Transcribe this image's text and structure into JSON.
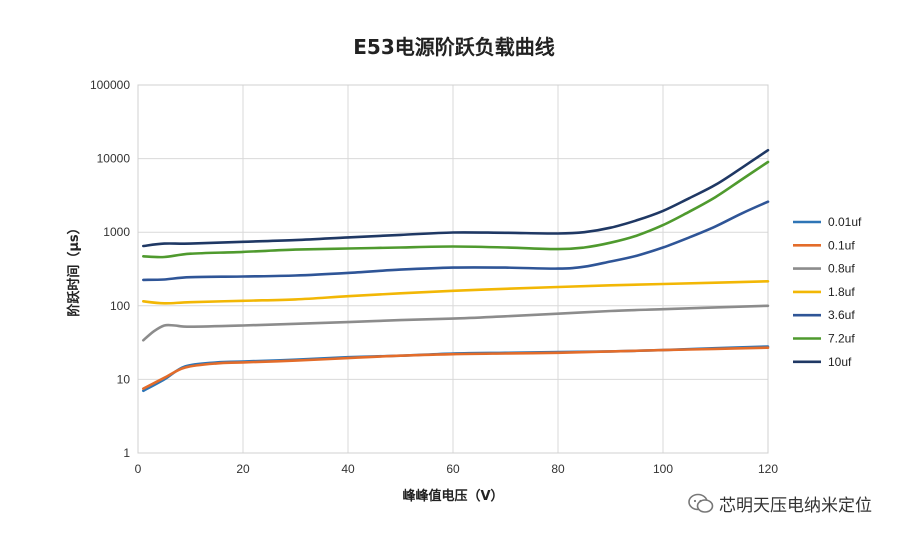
{
  "chart_data": {
    "type": "line",
    "title": "E53电源阶跃负载曲线",
    "xlabel": "峰峰值电压（V）",
    "ylabel": "阶跃时间（μs）",
    "x_ticks": [
      "0",
      "20",
      "40",
      "60",
      "80",
      "100",
      "120"
    ],
    "y_ticks": [
      "1",
      "10",
      "100",
      "1000",
      "10000",
      "100000"
    ],
    "xlim": [
      0,
      120
    ],
    "ylim": [
      1,
      100000
    ],
    "y_scale": "log",
    "grid": true,
    "legend_position": "right",
    "series": [
      {
        "name": "0.01uf",
        "color": "#2e75b6",
        "points": [
          [
            1,
            7
          ],
          [
            5,
            10
          ],
          [
            9,
            15
          ],
          [
            15,
            17
          ],
          [
            20,
            17.5
          ],
          [
            30,
            18.5
          ],
          [
            40,
            20
          ],
          [
            50,
            21
          ],
          [
            60,
            22.5
          ],
          [
            70,
            23
          ],
          [
            80,
            23.5
          ],
          [
            90,
            24
          ],
          [
            100,
            25
          ],
          [
            110,
            26.5
          ],
          [
            120,
            28
          ]
        ]
      },
      {
        "name": "0.1uf",
        "color": "#e36c2a",
        "points": [
          [
            1,
            7.5
          ],
          [
            5,
            10.5
          ],
          [
            9,
            14.5
          ],
          [
            15,
            16.5
          ],
          [
            20,
            17
          ],
          [
            30,
            18
          ],
          [
            40,
            19.5
          ],
          [
            50,
            21
          ],
          [
            60,
            22
          ],
          [
            70,
            22.5
          ],
          [
            80,
            23
          ],
          [
            90,
            24
          ],
          [
            100,
            25
          ],
          [
            110,
            26
          ],
          [
            120,
            27
          ]
        ]
      },
      {
        "name": "0.8uf",
        "color": "#8c8c8c",
        "points": [
          [
            1,
            34
          ],
          [
            3,
            45
          ],
          [
            5,
            54
          ],
          [
            7,
            54
          ],
          [
            10,
            52
          ],
          [
            20,
            54
          ],
          [
            30,
            57
          ],
          [
            40,
            60
          ],
          [
            50,
            64
          ],
          [
            60,
            67
          ],
          [
            70,
            72
          ],
          [
            80,
            78
          ],
          [
            90,
            85
          ],
          [
            100,
            90
          ],
          [
            110,
            95
          ],
          [
            120,
            100
          ]
        ]
      },
      {
        "name": "1.8uf",
        "color": "#f2b705",
        "points": [
          [
            1,
            115
          ],
          [
            5,
            108
          ],
          [
            10,
            112
          ],
          [
            20,
            117
          ],
          [
            30,
            122
          ],
          [
            40,
            135
          ],
          [
            50,
            148
          ],
          [
            60,
            160
          ],
          [
            70,
            170
          ],
          [
            80,
            180
          ],
          [
            90,
            190
          ],
          [
            100,
            198
          ],
          [
            110,
            206
          ],
          [
            120,
            215
          ]
        ]
      },
      {
        "name": "3.6uf",
        "color": "#2f5597",
        "points": [
          [
            1,
            225
          ],
          [
            5,
            228
          ],
          [
            10,
            245
          ],
          [
            20,
            250
          ],
          [
            30,
            258
          ],
          [
            40,
            280
          ],
          [
            50,
            310
          ],
          [
            60,
            330
          ],
          [
            70,
            330
          ],
          [
            80,
            320
          ],
          [
            85,
            340
          ],
          [
            90,
            400
          ],
          [
            95,
            480
          ],
          [
            100,
            620
          ],
          [
            105,
            850
          ],
          [
            110,
            1200
          ],
          [
            115,
            1800
          ],
          [
            120,
            2600
          ]
        ]
      },
      {
        "name": "7.2uf",
        "color": "#4f9a2e",
        "points": [
          [
            1,
            470
          ],
          [
            5,
            460
          ],
          [
            10,
            510
          ],
          [
            20,
            540
          ],
          [
            30,
            580
          ],
          [
            40,
            600
          ],
          [
            50,
            620
          ],
          [
            60,
            640
          ],
          [
            70,
            620
          ],
          [
            80,
            590
          ],
          [
            85,
            620
          ],
          [
            90,
            720
          ],
          [
            95,
            900
          ],
          [
            100,
            1250
          ],
          [
            105,
            1900
          ],
          [
            110,
            3000
          ],
          [
            115,
            5200
          ],
          [
            120,
            9000
          ]
        ]
      },
      {
        "name": "10uf",
        "color": "#1f3864",
        "points": [
          [
            1,
            650
          ],
          [
            5,
            700
          ],
          [
            10,
            700
          ],
          [
            20,
            740
          ],
          [
            30,
            780
          ],
          [
            40,
            850
          ],
          [
            50,
            920
          ],
          [
            60,
            990
          ],
          [
            70,
            980
          ],
          [
            80,
            960
          ],
          [
            85,
            1000
          ],
          [
            90,
            1150
          ],
          [
            95,
            1450
          ],
          [
            100,
            1950
          ],
          [
            105,
            2900
          ],
          [
            110,
            4400
          ],
          [
            115,
            7500
          ],
          [
            120,
            13000
          ]
        ]
      }
    ]
  },
  "watermark": {
    "text": "芯明天压电纳米定位",
    "icon": "wechat-icon"
  }
}
